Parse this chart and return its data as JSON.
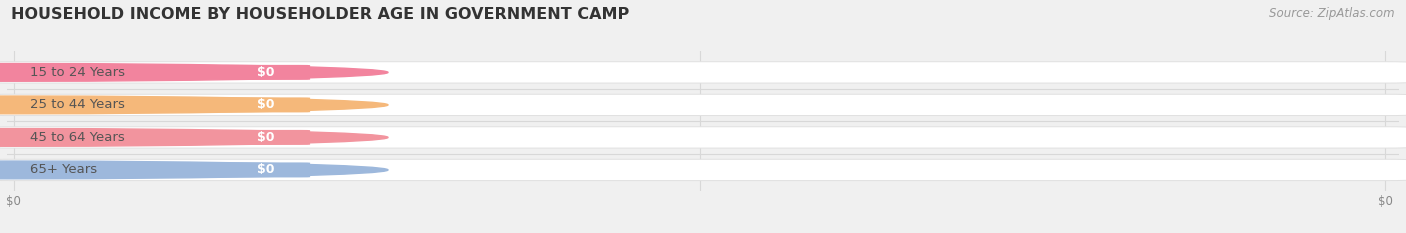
{
  "title": "HOUSEHOLD INCOME BY HOUSEHOLDER AGE IN GOVERNMENT CAMP",
  "source": "Source: ZipAtlas.com",
  "categories": [
    "15 to 24 Years",
    "25 to 44 Years",
    "45 to 64 Years",
    "65+ Years"
  ],
  "values": [
    0,
    0,
    0,
    0
  ],
  "bar_colors": [
    "#f2849e",
    "#f5b87a",
    "#f2949e",
    "#9db8dc"
  ],
  "background_color": "#f0f0f0",
  "track_color": "#ffffff",
  "track_edge_color": "#e0e0e0",
  "title_fontsize": 11.5,
  "source_fontsize": 8.5,
  "label_fontsize": 9.5,
  "value_fontsize": 9,
  "tick_fontsize": 8.5,
  "xtick_labels": [
    "$0",
    "$0"
  ],
  "grid_color": "#d8d8d8"
}
